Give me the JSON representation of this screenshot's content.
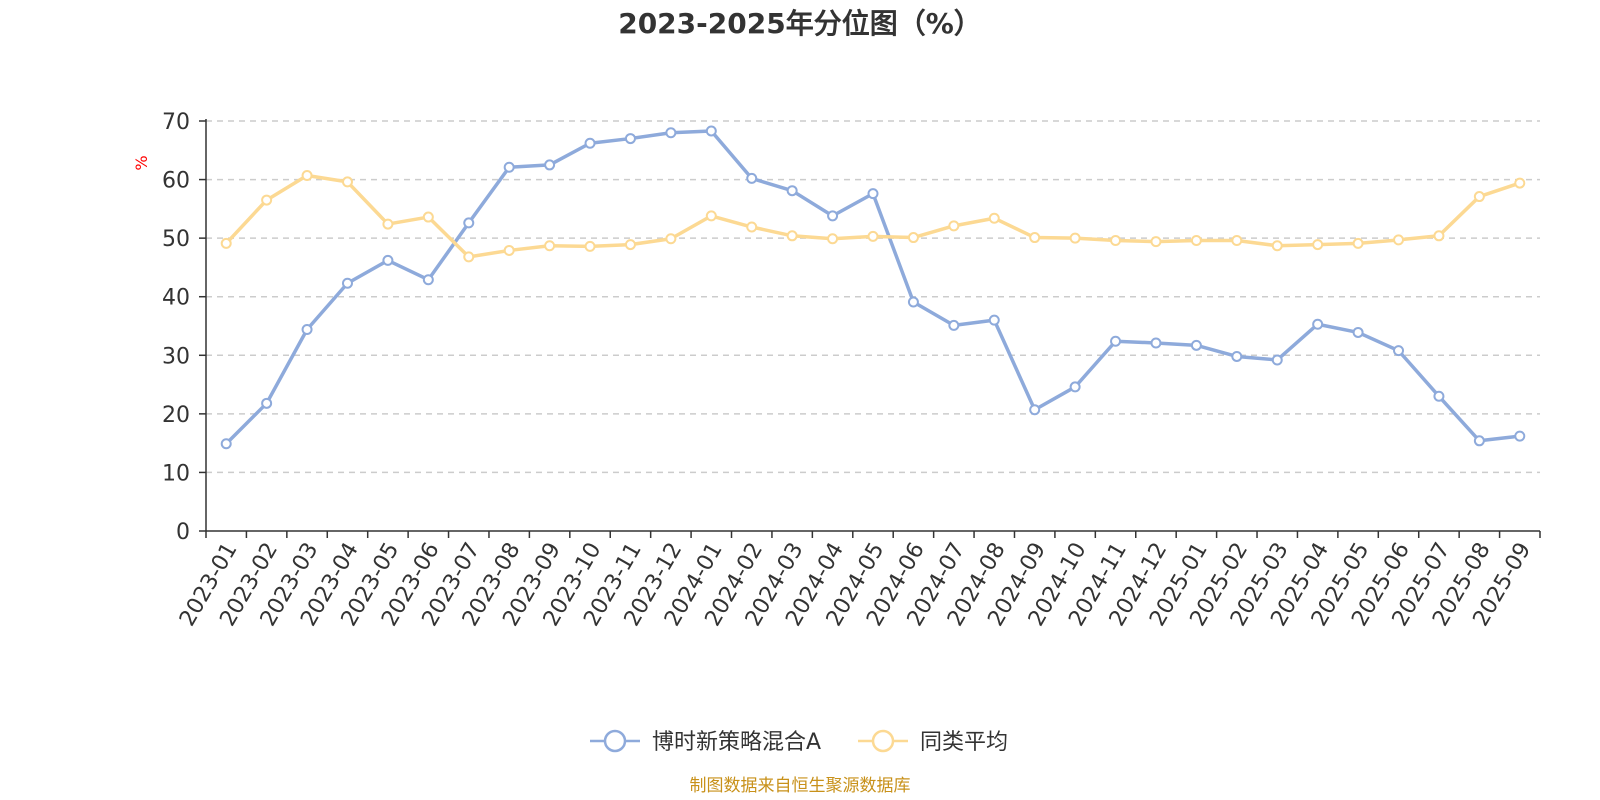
{
  "chart_data": {
    "type": "line",
    "title": "2023-2025年分位图（%）",
    "ylabel": "%",
    "ylim": [
      0,
      70
    ],
    "yticks": [
      0,
      10,
      20,
      30,
      40,
      50,
      60,
      70
    ],
    "grid": true,
    "legend_position": "bottom",
    "categories": [
      "2023-01",
      "2023-02",
      "2023-03",
      "2023-04",
      "2023-05",
      "2023-06",
      "2023-07",
      "2023-08",
      "2023-09",
      "2023-10",
      "2023-11",
      "2023-12",
      "2024-01",
      "2024-02",
      "2024-03",
      "2024-04",
      "2024-05",
      "2024-06",
      "2024-07",
      "2024-08",
      "2024-09",
      "2024-10",
      "2024-11",
      "2024-12",
      "2025-01",
      "2025-02",
      "2025-03",
      "2025-04",
      "2025-05",
      "2025-06",
      "2025-07",
      "2025-08",
      "2025-09"
    ],
    "series": [
      {
        "name": "博时新策略混合A",
        "color": "#8eaadb",
        "values": [
          14.9,
          21.8,
          34.4,
          42.3,
          46.2,
          42.9,
          52.6,
          62.1,
          62.5,
          66.2,
          67.0,
          68.0,
          68.3,
          60.2,
          58.1,
          53.8,
          57.6,
          39.1,
          35.1,
          36.0,
          20.7,
          24.6,
          32.4,
          32.1,
          31.7,
          29.8,
          29.2,
          35.3,
          33.9,
          30.8,
          23.0,
          15.4,
          16.2
        ]
      },
      {
        "name": "同类平均",
        "color": "#fcd993",
        "values": [
          49.1,
          56.5,
          60.7,
          59.6,
          52.4,
          53.6,
          46.8,
          47.9,
          48.7,
          48.6,
          48.9,
          49.9,
          53.8,
          51.9,
          50.4,
          49.9,
          50.3,
          50.1,
          52.1,
          53.4,
          50.1,
          50.0,
          49.6,
          49.4,
          49.6,
          49.6,
          48.7,
          48.9,
          49.1,
          49.7,
          50.4,
          57.1,
          59.4
        ]
      }
    ],
    "source": "制图数据来自恒生聚源数据库"
  }
}
